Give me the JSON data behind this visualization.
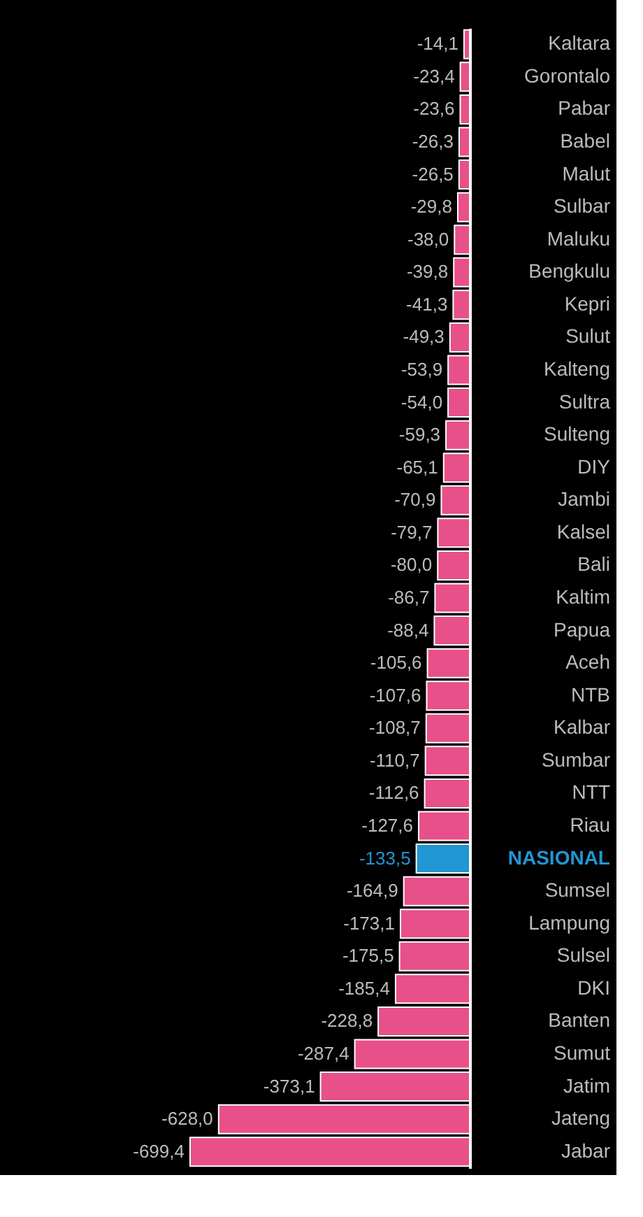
{
  "chart_data": {
    "type": "bar",
    "orientation": "horizontal",
    "categories": [
      "Kaltara",
      "Gorontalo",
      "Pabar",
      "Babel",
      "Malut",
      "Sulbar",
      "Maluku",
      "Bengkulu",
      "Kepri",
      "Sulut",
      "Kalteng",
      "Sultra",
      "Sulteng",
      "DIY",
      "Jambi",
      "Kalsel",
      "Bali",
      "Kaltim",
      "Papua",
      "Aceh",
      "NTB",
      "Kalbar",
      "Sumbar",
      "NTT",
      "Riau",
      "NASIONAL",
      "Sumsel",
      "Lampung",
      "Sulsel",
      "DKI",
      "Banten",
      "Sumut",
      "Jatim",
      "Jateng",
      "Jabar"
    ],
    "values": [
      -14.1,
      -23.4,
      -23.6,
      -26.3,
      -26.5,
      -29.8,
      -38.0,
      -39.8,
      -41.3,
      -49.3,
      -53.9,
      -54.0,
      -59.3,
      -65.1,
      -70.9,
      -79.7,
      -80.0,
      -86.7,
      -88.4,
      -105.6,
      -107.6,
      -108.7,
      -110.7,
      -112.6,
      -127.6,
      -133.5,
      -164.9,
      -173.1,
      -175.5,
      -185.4,
      -228.8,
      -287.4,
      -373.1,
      -628.0,
      -699.4
    ],
    "value_labels": [
      "-14,1",
      "-23,4",
      "-23,6",
      "-26,3",
      "-26,5",
      "-29,8",
      "-38,0",
      "-39,8",
      "-41,3",
      "-49,3",
      "-53,9",
      "-54,0",
      "-59,3",
      "-65,1",
      "-70,9",
      "-79,7",
      "-80,0",
      "-86,7",
      "-88,4",
      "-105,6",
      "-107,6",
      "-108,7",
      "-110,7",
      "-112,6",
      "-127,6",
      "-133,5",
      "-164,9",
      "-173,1",
      "-175,5",
      "-185,4",
      "-228,8",
      "-287,4",
      "-373,1",
      "-628,0",
      "-699,4"
    ],
    "colors": [
      "#e8508a",
      "#e8508a",
      "#e8508a",
      "#e8508a",
      "#e8508a",
      "#e8508a",
      "#e8508a",
      "#e8508a",
      "#e8508a",
      "#e8508a",
      "#e8508a",
      "#e8508a",
      "#e8508a",
      "#e8508a",
      "#e8508a",
      "#e8508a",
      "#e8508a",
      "#e8508a",
      "#e8508a",
      "#e8508a",
      "#e8508a",
      "#e8508a",
      "#e8508a",
      "#e8508a",
      "#e8508a",
      "#2196d3",
      "#e8508a",
      "#e8508a",
      "#e8508a",
      "#e8508a",
      "#e8508a",
      "#e8508a",
      "#e8508a",
      "#e8508a",
      "#e8508a"
    ],
    "grid": false
  }
}
